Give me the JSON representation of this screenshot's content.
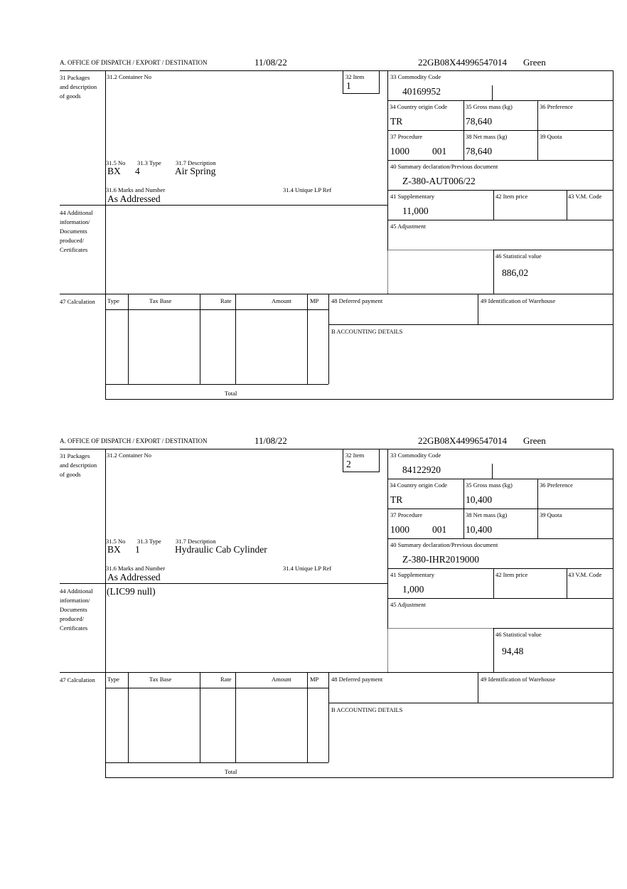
{
  "labels": {
    "office": "A. OFFICE OF DISPATCH / EXPORT / DESTINATION",
    "box31": "31 Packages and description of goods",
    "container": "31.2 Container No",
    "item": "32 Item",
    "commodity": "33 Commodity Code",
    "country": "34 Country origin Code",
    "gross": "35 Gross mass (kg)",
    "preference": "36 Preference",
    "procedure": "37 Procedure",
    "net": "38 Net mass (kg)",
    "quota": "39 Quota",
    "summary": "40 Summary declaration/Previous document",
    "no": "31.5 No",
    "type": "31.3 Type",
    "description": "31.7 Description",
    "marks": "31.6 Marks and Number",
    "unique": "31.4 Unique LP Ref",
    "supplementary": "41 Supplementary",
    "item_price": "42 Item price",
    "vm_code": "43 V.M. Code",
    "box44": "44 Additional information/ Documents produced/ Certificates",
    "adjustment": "45 Adjustment",
    "statistical": "46 Statistical value",
    "box47": "47 Calculation",
    "col_type": "Type",
    "col_taxbase": "Tax Base",
    "col_rate": "Rate",
    "col_amount": "Amount",
    "col_mp": "MP",
    "deferred": "48 Deferred payment",
    "warehouse": "49 Identification of Warehouse",
    "accounting": "B ACCOUNTING DETAILS",
    "total": "Total"
  },
  "items": [
    {
      "date": "11/08/22",
      "reference": "22GB08X44996547014",
      "route": "Green",
      "item_no": "1",
      "commodity_code": "40169952",
      "country_origin": "TR",
      "gross_mass": "78,640",
      "procedure": "1000",
      "procedure_add": "001",
      "net_mass": "78,640",
      "previous_document": "Z-380-AUT006/22",
      "packages_type": "BX",
      "packages_no": "4",
      "description": "Air Spring",
      "marks": "As Addressed",
      "supplementary": "11,000",
      "additional_info": "",
      "statistical_value": "886,02"
    },
    {
      "date": "11/08/22",
      "reference": "22GB08X44996547014",
      "route": "Green",
      "item_no": "2",
      "commodity_code": "84122920",
      "country_origin": "TR",
      "gross_mass": "10,400",
      "procedure": "1000",
      "procedure_add": "001",
      "net_mass": "10,400",
      "previous_document": "Z-380-IHR2019000",
      "packages_type": "BX",
      "packages_no": "1",
      "description": "Hydraulic Cab Cylinder",
      "marks": "As Addressed",
      "supplementary": "1,000",
      "additional_info": "(LIC99 null)",
      "statistical_value": "94,48"
    }
  ]
}
